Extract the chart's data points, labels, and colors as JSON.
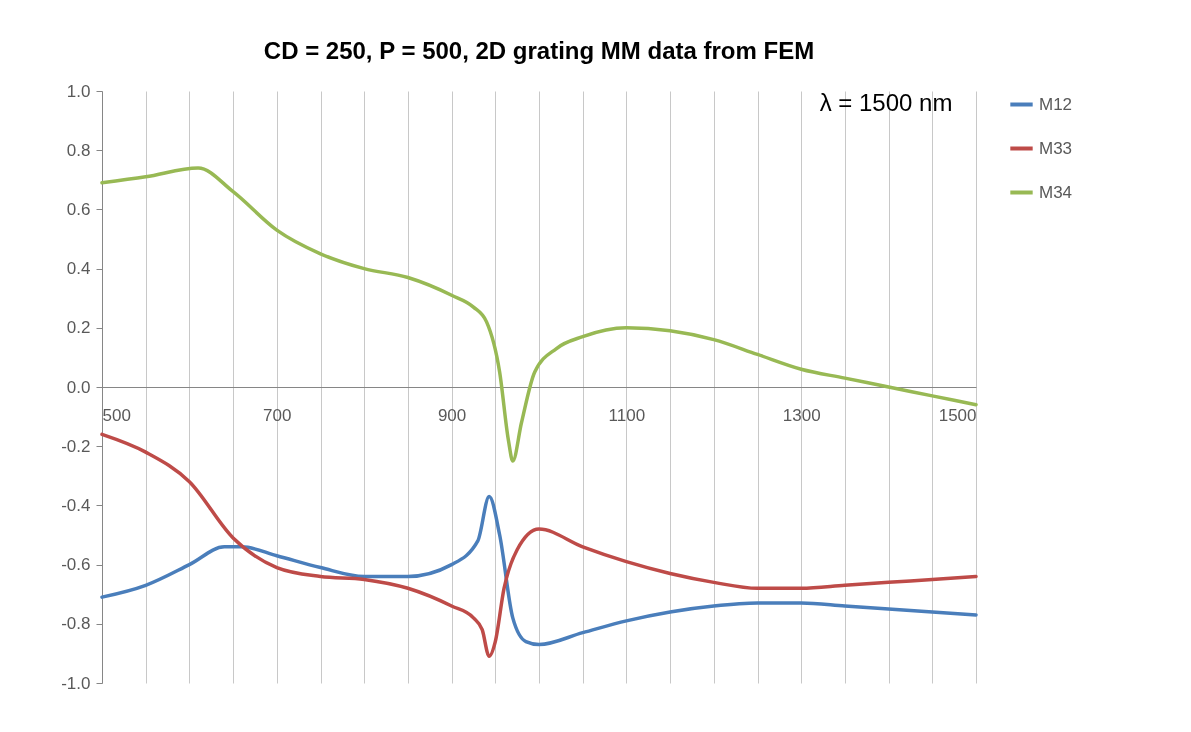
{
  "chart_data": {
    "type": "line",
    "title": "CD = 250, P = 500, 2D grating MM data from FEM",
    "series": [
      {
        "name": "M12",
        "color": "#4a7ebb",
        "x": [
          500,
          550,
          600,
          640,
          660,
          700,
          750,
          800,
          850,
          900,
          930,
          943,
          955,
          970,
          985,
          1000,
          1050,
          1100,
          1150,
          1200,
          1250,
          1300,
          1350,
          1400,
          1450,
          1500
        ],
        "values": [
          -0.71,
          -0.67,
          -0.6,
          -0.54,
          -0.54,
          -0.57,
          -0.61,
          -0.64,
          -0.64,
          -0.6,
          -0.52,
          -0.37,
          -0.5,
          -0.78,
          -0.86,
          -0.87,
          -0.83,
          -0.79,
          -0.76,
          -0.74,
          -0.73,
          -0.73,
          -0.74,
          -0.75,
          -0.76,
          -0.77
        ]
      },
      {
        "name": "M33",
        "color": "#be4b48",
        "x": [
          500,
          550,
          600,
          650,
          700,
          750,
          800,
          850,
          900,
          925,
          935,
          943,
          950,
          960,
          975,
          1000,
          1050,
          1100,
          1150,
          1200,
          1250,
          1300,
          1350,
          1400,
          1450,
          1500
        ],
        "values": [
          -0.16,
          -0.22,
          -0.32,
          -0.51,
          -0.61,
          -0.64,
          -0.65,
          -0.68,
          -0.74,
          -0.78,
          -0.82,
          -0.91,
          -0.86,
          -0.68,
          -0.55,
          -0.48,
          -0.54,
          -0.59,
          -0.63,
          -0.66,
          -0.68,
          -0.68,
          -0.67,
          -0.66,
          -0.65,
          -0.64
        ]
      },
      {
        "name": "M34",
        "color": "#98b954",
        "x": [
          500,
          550,
          610,
          650,
          700,
          750,
          800,
          850,
          900,
          925,
          940,
          955,
          965,
          970,
          980,
          995,
          1020,
          1050,
          1100,
          1150,
          1200,
          1250,
          1300,
          1350,
          1400,
          1450,
          1500
        ],
        "values": [
          0.69,
          0.71,
          0.74,
          0.66,
          0.53,
          0.45,
          0.4,
          0.37,
          0.31,
          0.27,
          0.22,
          0.05,
          -0.18,
          -0.25,
          -0.12,
          0.05,
          0.13,
          0.17,
          0.2,
          0.19,
          0.16,
          0.11,
          0.06,
          0.03,
          0.0,
          -0.03,
          -0.06
        ]
      }
    ],
    "xlim": [
      500,
      1500
    ],
    "xticks": [
      500,
      {
        "value": 550,
        "label": null
      },
      {
        "value": 600,
        "label": null
      },
      {
        "value": 650,
        "label": null
      },
      700,
      {
        "value": 750,
        "label": null
      },
      {
        "value": 800,
        "label": null
      },
      {
        "value": 850,
        "label": null
      },
      900,
      {
        "value": 950,
        "label": null
      },
      {
        "value": 1000,
        "label": null
      },
      {
        "value": 1050,
        "label": null
      },
      1100,
      {
        "value": 1150,
        "label": null
      },
      {
        "value": 1200,
        "label": null
      },
      {
        "value": 1250,
        "label": null
      },
      1300,
      {
        "value": 1350,
        "label": null
      },
      {
        "value": 1400,
        "label": null
      },
      {
        "value": 1450,
        "label": null
      },
      1500
    ],
    "ylim": [
      -1.0,
      1.0
    ],
    "yticks": [
      {
        "value": -1.0,
        "label": "-1.0"
      },
      -0.8,
      -0.6,
      -0.4,
      -0.2,
      {
        "value": 0,
        "label": "0.0"
      },
      0.2,
      0.4,
      0.6,
      0.8,
      {
        "value": 1.0,
        "label": "1.0"
      }
    ],
    "grid": "x",
    "legend": "right",
    "line_style": "solid",
    "marker": "none",
    "annotations": [
      "λ = 1500 nm"
    ]
  }
}
